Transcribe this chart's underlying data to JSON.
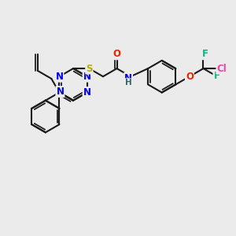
{
  "bg_color": "#ebebeb",
  "bond_color": "#1a1a1a",
  "bond_width": 1.5,
  "atom_colors": {
    "N": "#0000ee",
    "S": "#bbaa00",
    "O": "#ee2200",
    "F": "#00bb88",
    "Cl": "#ee44aa",
    "H": "#336666",
    "C": "#1a1a1a"
  },
  "fs": 8.5,
  "fs2": 7.5
}
